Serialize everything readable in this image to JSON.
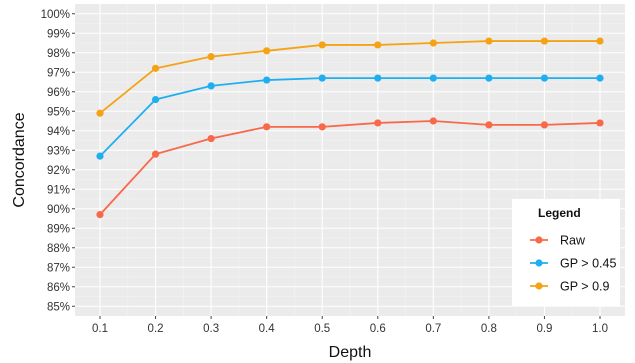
{
  "chart_data": {
    "type": "line",
    "xlabel": "Depth",
    "ylabel": "Concordance",
    "x": [
      0.1,
      0.2,
      0.3,
      0.4,
      0.5,
      0.6,
      0.7,
      0.8,
      0.9,
      1.0
    ],
    "x_tick_labels": [
      "0.1",
      "0.2",
      "0.3",
      "0.4",
      "0.5",
      "0.6",
      "0.7",
      "0.8",
      "0.9",
      "1.0"
    ],
    "ylim": [
      84.5,
      100.5
    ],
    "y_ticks": [
      85,
      86,
      87,
      88,
      89,
      90,
      91,
      92,
      93,
      94,
      95,
      96,
      97,
      98,
      99,
      100
    ],
    "y_tick_suffix": "%",
    "grid": true,
    "legend": {
      "title": "Legend",
      "position": "bottom-right"
    },
    "series": [
      {
        "name": "Raw",
        "color": "#f8694a",
        "values": [
          89.7,
          92.8,
          93.6,
          94.2,
          94.2,
          94.4,
          94.5,
          94.3,
          94.3,
          94.4
        ]
      },
      {
        "name": "GP > 0.45",
        "color": "#1faff0",
        "values": [
          92.7,
          95.6,
          96.3,
          96.6,
          96.7,
          96.7,
          96.7,
          96.7,
          96.7,
          96.7
        ]
      },
      {
        "name": "GP > 0.9",
        "color": "#f5a314",
        "values": [
          94.9,
          97.2,
          97.8,
          98.1,
          98.4,
          98.4,
          98.5,
          98.6,
          98.6,
          98.6
        ]
      }
    ]
  }
}
